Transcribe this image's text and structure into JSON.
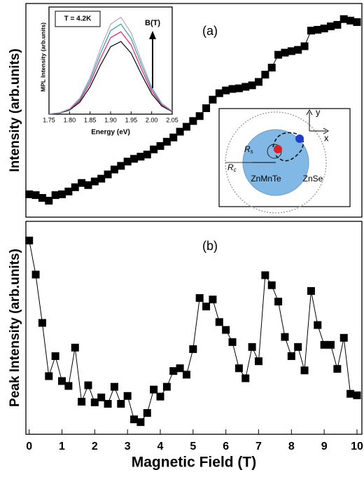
{
  "chart_data": [
    {
      "type": "line",
      "annotation": "(a)",
      "y_label": "Intensity (arb.units)",
      "color": "#000000",
      "markers": true,
      "xlim": [
        -0.1,
        10.15
      ],
      "ylim": [
        0,
        100
      ],
      "x": [
        0,
        0.2,
        0.4,
        0.6,
        0.8,
        1.0,
        1.2,
        1.4,
        1.6,
        1.8,
        2.0,
        2.2,
        2.4,
        2.6,
        2.8,
        3.0,
        3.2,
        3.4,
        3.6,
        3.8,
        4.0,
        4.2,
        4.4,
        4.6,
        4.8,
        5.0,
        5.2,
        5.4,
        5.6,
        5.8,
        6.0,
        6.2,
        6.4,
        6.6,
        6.8,
        7.0,
        7.2,
        7.4,
        7.6,
        7.8,
        8.0,
        8.2,
        8.4,
        8.6,
        8.8,
        9.0,
        9.2,
        9.4,
        9.6,
        9.8,
        10.0
      ],
      "values": [
        10.7,
        10.3,
        9,
        7.7,
        10.3,
        10.7,
        12,
        14,
        16,
        15,
        16.7,
        18,
        20,
        22.3,
        24,
        26,
        27.3,
        28.3,
        29.3,
        31.7,
        33.3,
        35.3,
        37.3,
        40,
        42.3,
        45,
        47.3,
        51,
        55,
        58,
        59.3,
        60,
        60.3,
        61,
        61.7,
        63.3,
        66.7,
        70,
        76,
        77,
        77.7,
        78.3,
        80,
        87.3,
        87.7,
        88.3,
        89.3,
        90,
        92.7,
        92,
        91.3
      ]
    },
    {
      "type": "line",
      "annotation": "(b)",
      "y_label": "Peak Intensity (arb.units)",
      "x_label": "Magnetic Field (T)",
      "color": "#000000",
      "markers": true,
      "xlim": [
        -0.1,
        10.15
      ],
      "ylim": [
        0,
        100
      ],
      "xticks": [
        0,
        1,
        2,
        3,
        4,
        5,
        6,
        7,
        8,
        9,
        10
      ],
      "x": [
        0,
        0.2,
        0.4,
        0.6,
        0.8,
        1.0,
        1.2,
        1.4,
        1.6,
        1.8,
        2.0,
        2.2,
        2.4,
        2.6,
        2.8,
        3.0,
        3.2,
        3.4,
        3.6,
        3.8,
        4.0,
        4.2,
        4.4,
        4.6,
        4.8,
        5.0,
        5.2,
        5.4,
        5.6,
        5.8,
        6.0,
        6.2,
        6.4,
        6.6,
        6.8,
        7.0,
        7.2,
        7.4,
        7.6,
        7.8,
        8.0,
        8.2,
        8.4,
        8.6,
        8.8,
        9.0,
        9.2,
        9.4,
        9.6,
        9.8,
        10.0
      ],
      "values": [
        91,
        75,
        52.3,
        27.3,
        36.7,
        25,
        22.7,
        40.7,
        15.3,
        23,
        15,
        17.3,
        14.3,
        22.3,
        14.3,
        18,
        7,
        5.7,
        10,
        21,
        17.7,
        22.3,
        29.7,
        31,
        28,
        40,
        64,
        60,
        63.3,
        52.7,
        49,
        43.3,
        31,
        26.3,
        41,
        34.3,
        74.7,
        70,
        62.3,
        45.7,
        36.7,
        41,
        30,
        67.3,
        51.3,
        42,
        42,
        30.7,
        45.3,
        19,
        18.3
      ]
    },
    {
      "type": "line",
      "annotation": "T = 4.2K",
      "field_label": "B(T)",
      "y_label": "MPL Intensity (arb.units)",
      "x_label": "Energy (eV)",
      "xlim": [
        1.75,
        2.05
      ],
      "ylim": [
        0,
        1.1
      ],
      "xticks": [
        1.75,
        {
          "value": 1.8,
          "label": "1.80"
        },
        1.85,
        {
          "value": 1.9,
          "label": "1.90"
        },
        1.95,
        {
          "value": 2.0,
          "label": "2.00"
        },
        2.05
      ],
      "x": [
        1.75,
        1.775,
        1.8,
        1.825,
        1.85,
        1.875,
        1.9,
        1.925,
        1.95,
        1.975,
        2.0,
        2.025,
        2.05
      ],
      "series": [
        {
          "color": "#000000",
          "values": [
            0.002,
            0.011,
            0.042,
            0.123,
            0.281,
            0.5,
            0.692,
            0.746,
            0.626,
            0.41,
            0.209,
            0.083,
            0.026
          ]
        },
        {
          "color": "#e0207a",
          "values": [
            0.003,
            0.013,
            0.048,
            0.139,
            0.319,
            0.567,
            0.785,
            0.846,
            0.71,
            0.464,
            0.236,
            0.094,
            0.029
          ]
        },
        {
          "color": "#3a9c9c",
          "values": [
            0.003,
            0.014,
            0.052,
            0.153,
            0.349,
            0.62,
            0.858,
            0.925,
            0.777,
            0.508,
            0.259,
            0.102,
            0.032
          ]
        },
        {
          "color": "#a8a8c8",
          "values": [
            0.003,
            0.015,
            0.056,
            0.164,
            0.375,
            0.667,
            0.923,
            0.995,
            0.835,
            0.546,
            0.278,
            0.11,
            0.034
          ]
        }
      ]
    }
  ],
  "diagram": {
    "rs": {
      "main": "R",
      "sub": "s"
    },
    "rc": {
      "main": "R",
      "sub": "c"
    },
    "core": "ZnMnTe",
    "shell": "ZnSe",
    "axis_x": "x",
    "axis_y": "y"
  }
}
